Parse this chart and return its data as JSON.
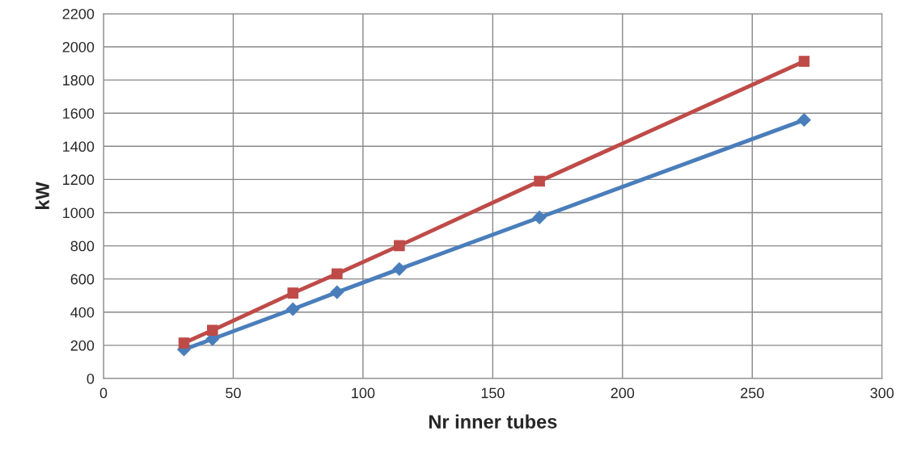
{
  "chart_data": {
    "type": "line",
    "xlabel": "Nr inner tubes",
    "ylabel": "kW",
    "xlim": [
      0,
      300
    ],
    "xticks": [
      0,
      50,
      100,
      150,
      200,
      250,
      300
    ],
    "ylim": [
      0,
      2200
    ],
    "yticks": [
      0,
      200,
      400,
      600,
      800,
      1000,
      1200,
      1400,
      1600,
      1800,
      2000,
      2200
    ],
    "grid": true,
    "line_style": "solid",
    "x": [
      31,
      42,
      73,
      90,
      114,
      168,
      270
    ],
    "series": [
      {
        "color": "#4a7ebb",
        "marker": "diamond",
        "values": [
          175,
          238,
          418,
          520,
          660,
          971,
          1559
        ]
      },
      {
        "color": "#be4b48",
        "marker": "square",
        "values": [
          214,
          291,
          515,
          631,
          801,
          1190,
          1913
        ]
      }
    ]
  }
}
